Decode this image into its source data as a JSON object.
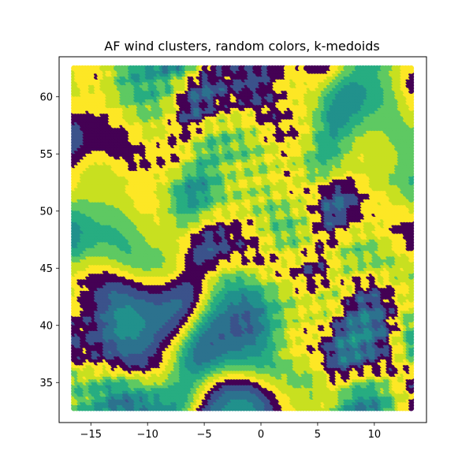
{
  "chart_data": {
    "type": "scatter",
    "title": "AF wind clusters, random colors, k-medoids",
    "xlabel": "",
    "ylabel": "",
    "xlim": [
      -17.8,
      14.6
    ],
    "ylim": [
      31.5,
      63.5
    ],
    "xticks": [
      -15,
      -10,
      -5,
      0,
      5,
      10
    ],
    "yticks": [
      35,
      40,
      45,
      50,
      55,
      60
    ],
    "xtick_labels": [
      "−15",
      "−10",
      "−5",
      "0",
      "5",
      "10"
    ],
    "ytick_labels": [
      "35",
      "40",
      "45",
      "50",
      "55",
      "60"
    ],
    "grid": false,
    "legend": "none",
    "grid_extent": {
      "x": [
        -16.5,
        13.25
      ],
      "y": [
        32.75,
        62.5
      ],
      "step": 0.25
    },
    "colormap": "viridis",
    "cluster_colors": [
      "#440154",
      "#3b528b",
      "#2c728e",
      "#21918c",
      "#27ad81",
      "#5ec962",
      "#c8e020",
      "#fde725"
    ]
  }
}
